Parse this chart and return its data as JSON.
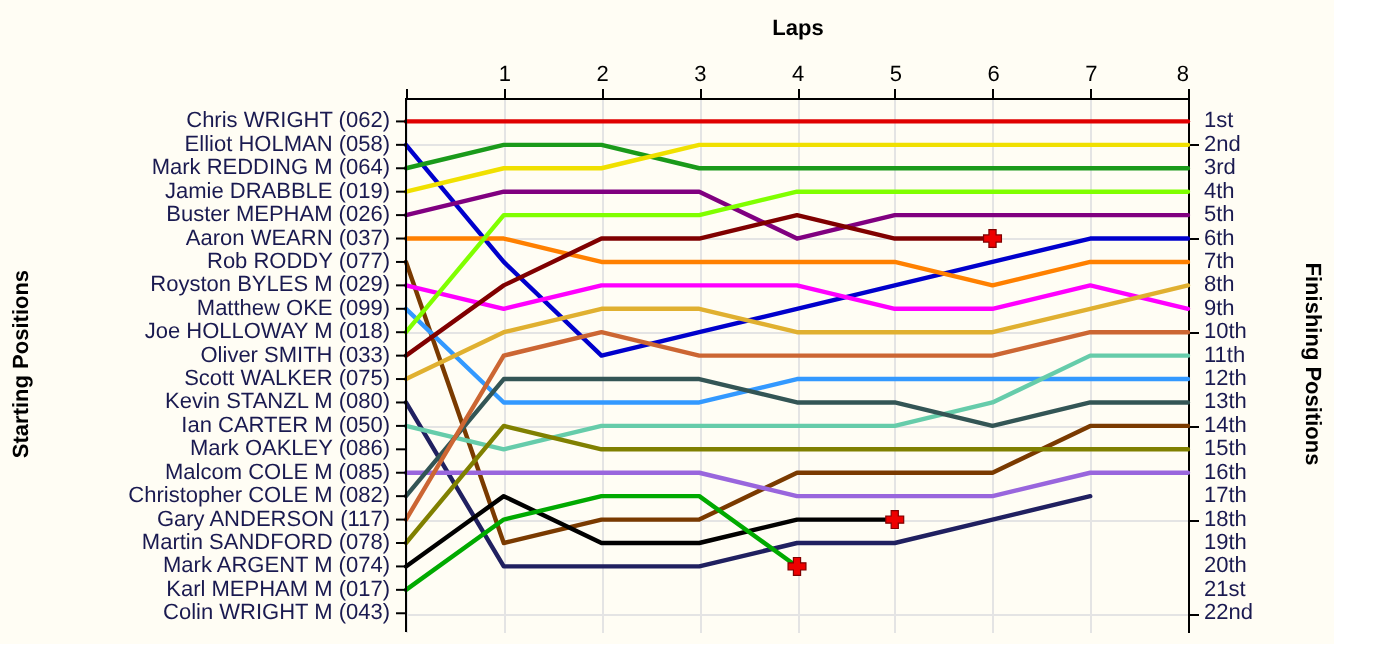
{
  "chart_data": {
    "type": "line",
    "xlabel": "Laps",
    "ylabel": "Finishing Positions",
    "annotations": [
      "Starting Positions"
    ],
    "x": [
      0,
      1,
      2,
      3,
      4,
      5,
      6,
      7,
      8
    ],
    "xlim": [
      0,
      8
    ],
    "xticks": [
      {
        "value": 0,
        "label": null
      },
      1,
      2,
      3,
      4,
      5,
      6,
      7,
      8
    ],
    "y_categories": [
      "Chris WRIGHT (062)",
      "Elliot HOLMAN (058)",
      "Mark REDDING    M (064)",
      "Jamie DRABBLE (019)",
      "Buster MEPHAM (026)",
      "Aaron WEARN (037)",
      "Rob RODDY (077)",
      "Royston BYLES       M (029)",
      "Matthew OKE (099)",
      "Joe HOLLOWAY    M (018)",
      "Oliver SMITH (033)",
      "Scott WALKER (075)",
      "Kevin STANZL       M (080)",
      "Ian CARTER        M (050)",
      "Mark OAKLEY (086)",
      "Malcom COLE       M (085)",
      "Christopher COLE   M (082)",
      "Gary ANDERSON (117)",
      "Martin SANDFORD (078)",
      "Mark ARGENT       M (074)",
      "Karl MEPHAM       M (017)",
      "Colin WRIGHT      M (043)"
    ],
    "ylim": [
      22.8,
      0
    ],
    "yticks": [
      {
        "value": 1,
        "label": "1st"
      },
      {
        "value": 2,
        "label": "2nd"
      },
      {
        "value": 3,
        "label": "3rd"
      },
      {
        "value": 4,
        "label": "4th"
      },
      {
        "value": 5,
        "label": "5th"
      },
      {
        "value": 6,
        "label": "6th"
      },
      {
        "value": 7,
        "label": "7th"
      },
      {
        "value": 8,
        "label": "8th"
      },
      {
        "value": 9,
        "label": "9th"
      },
      {
        "value": 10,
        "label": "10th"
      },
      {
        "value": 11,
        "label": "11th"
      },
      {
        "value": 12,
        "label": "12th"
      },
      {
        "value": 13,
        "label": "13th"
      },
      {
        "value": 14,
        "label": "14th"
      },
      {
        "value": 15,
        "label": "15th"
      },
      {
        "value": 16,
        "label": "16th"
      },
      {
        "value": 17,
        "label": "17th"
      },
      {
        "value": 18,
        "label": "18th"
      },
      {
        "value": 19,
        "label": "19th"
      },
      {
        "value": 20,
        "label": "20th"
      },
      {
        "value": 21,
        "label": "21st"
      },
      {
        "value": 22,
        "label": "22nd"
      }
    ],
    "grid": true,
    "legend": false,
    "marker": "none",
    "line_style": "solid",
    "series": [
      {
        "color": "#e00000",
        "values": [
          1,
          1,
          1,
          1,
          1,
          1,
          1,
          1,
          1
        ]
      },
      {
        "color": "#0000cc",
        "values": [
          2,
          7,
          11,
          10,
          9,
          8,
          7,
          6,
          6
        ]
      },
      {
        "color": "#1a9a1a",
        "values": [
          3,
          2,
          2,
          3,
          3,
          3,
          3,
          3,
          3
        ]
      },
      {
        "color": "#f0e000",
        "values": [
          4,
          3,
          3,
          2,
          2,
          2,
          2,
          2,
          2
        ]
      },
      {
        "color": "#800080",
        "values": [
          5,
          4,
          4,
          4,
          6,
          5,
          5,
          5,
          5
        ]
      },
      {
        "color": "#ff8000",
        "values": [
          6,
          6,
          7,
          7,
          7,
          7,
          8,
          7,
          7
        ]
      },
      {
        "color": "#7a3a00",
        "values": [
          7,
          19,
          18,
          18,
          16,
          16,
          16,
          14,
          14
        ]
      },
      {
        "color": "#ff00ff",
        "values": [
          8,
          9,
          8,
          8,
          8,
          9,
          9,
          8,
          9
        ]
      },
      {
        "color": "#3399ff",
        "values": [
          9,
          13,
          13,
          13,
          12,
          12,
          12,
          12,
          12
        ]
      },
      {
        "color": "#80ff00",
        "values": [
          10,
          5,
          5,
          5,
          4,
          4,
          4,
          4,
          4
        ]
      },
      {
        "color": "#800000",
        "values": [
          11,
          8,
          6,
          6,
          5,
          6,
          6,
          null,
          null
        ]
      },
      {
        "color": "#e0b030",
        "values": [
          12,
          10,
          9,
          9,
          10,
          10,
          10,
          9,
          8
        ]
      },
      {
        "color": "#202060",
        "values": [
          13,
          20,
          20,
          20,
          19,
          19,
          18,
          17,
          null
        ]
      },
      {
        "color": "#66ccaa",
        "values": [
          14,
          15,
          14,
          14,
          14,
          14,
          13,
          11,
          11
        ]
      },
      {
        "color": "#9966dd",
        "values": [
          16,
          16,
          16,
          16,
          17,
          17,
          17,
          16,
          16
        ]
      },
      {
        "color": "#335555",
        "values": [
          17,
          12,
          12,
          12,
          13,
          13,
          14,
          13,
          13
        ]
      },
      {
        "color": "#cc6633",
        "values": [
          18,
          11,
          10,
          11,
          11,
          11,
          11,
          10,
          10
        ]
      },
      {
        "color": "#808000",
        "values": [
          19,
          14,
          15,
          15,
          15,
          15,
          15,
          15,
          15
        ]
      },
      {
        "color": "#000000",
        "values": [
          20,
          17,
          19,
          19,
          18,
          18,
          null,
          null,
          null
        ]
      },
      {
        "color": "#00aa00",
        "values": [
          21,
          18,
          17,
          17,
          20,
          null,
          null,
          null,
          null
        ]
      },
      {
        "type": "scatter",
        "marker": "cross",
        "color": "#ee0000",
        "x": [
          4,
          5,
          6
        ],
        "values": [
          20,
          18,
          6
        ]
      }
    ]
  }
}
